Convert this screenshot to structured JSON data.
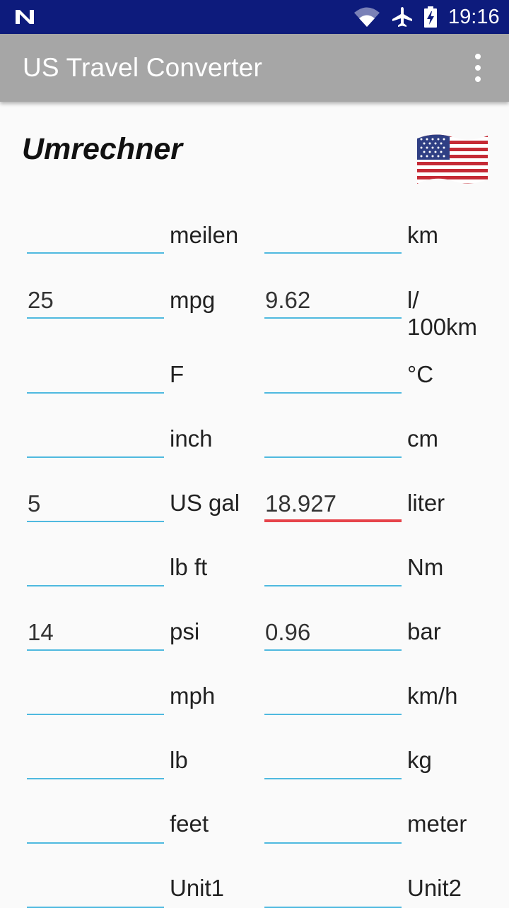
{
  "status_bar": {
    "time": "19:16",
    "icons": [
      "n-notification-icon",
      "wifi-icon",
      "airplane-icon",
      "battery-charging-icon"
    ]
  },
  "app_bar": {
    "title": "US Travel Converter",
    "menu_icon": "more-vert-icon"
  },
  "heading": "Umrechner",
  "flag_icon": "us-flag-icon",
  "colors": {
    "status_bar": "#0d1b7c",
    "app_bar": "#a6a6a6",
    "field_underline": "#4fb9df",
    "field_underline_active": "#e6434a"
  },
  "rows": [
    {
      "us_value": "",
      "us_unit": "meilen",
      "metric_value": "",
      "metric_unit": "km"
    },
    {
      "us_value": "25",
      "us_unit": "mpg",
      "metric_value": "9.62",
      "metric_unit": "l/ 100km"
    },
    {
      "us_value": "",
      "us_unit": "F",
      "metric_value": "",
      "metric_unit": "°C"
    },
    {
      "us_value": "",
      "us_unit": "inch",
      "metric_value": "",
      "metric_unit": "cm"
    },
    {
      "us_value": "5",
      "us_unit": "US gal",
      "metric_value": "18.927",
      "metric_unit": "liter"
    },
    {
      "us_value": "",
      "us_unit": "lb ft",
      "metric_value": "",
      "metric_unit": "Nm"
    },
    {
      "us_value": "14",
      "us_unit": "psi",
      "metric_value": "0.96",
      "metric_unit": "bar"
    },
    {
      "us_value": "",
      "us_unit": "mph",
      "metric_value": "",
      "metric_unit": "km/h"
    },
    {
      "us_value": "",
      "us_unit": "lb",
      "metric_value": "",
      "metric_unit": "kg"
    },
    {
      "us_value": "",
      "us_unit": "feet",
      "metric_value": "",
      "metric_unit": "meter"
    },
    {
      "us_value": "",
      "us_unit": "Unit1",
      "metric_value": "",
      "metric_unit": "Unit2"
    }
  ]
}
